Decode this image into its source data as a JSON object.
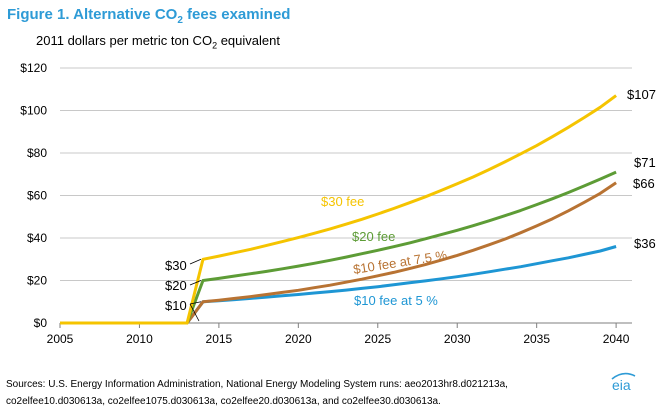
{
  "figure": {
    "title_prefix": "Figure 1. Alternative CO",
    "title_sub": "2",
    "title_suffix": " fees examined",
    "subtitle_prefix": "2011 dollars per metric ton CO",
    "subtitle_sub": "2",
    "subtitle_suffix": " equivalent"
  },
  "source": {
    "line1": "Sources: U.S. Energy Information Administration, National Energy Modeling System runs: aeo2013hr8.d021213a,",
    "line2": "co2elfee10.d030613a,  co2elfee1075.d030613a,  co2elfee20.d030613a,  and co2elfee30.d030613a."
  },
  "logo": {
    "text": "eia",
    "color": "#2e9bd6"
  },
  "chart_data": {
    "type": "line",
    "title": "Figure 1. Alternative CO2 fees examined",
    "ylabel": "2011 dollars per metric ton CO2 equivalent",
    "xlim": [
      2005,
      2041
    ],
    "ylim": [
      0,
      120
    ],
    "x_ticks": [
      2005,
      2010,
      2015,
      2020,
      2025,
      2030,
      2035,
      2040
    ],
    "y_ticks": [
      0,
      20,
      40,
      60,
      80,
      100,
      120
    ],
    "y_tick_labels": [
      "$0",
      "$20",
      "$40",
      "$60",
      "$80",
      "$100",
      "$120"
    ],
    "grid": "horizontal",
    "x": [
      2005,
      2006,
      2007,
      2008,
      2009,
      2010,
      2011,
      2012,
      2013,
      2014,
      2015,
      2016,
      2017,
      2018,
      2019,
      2020,
      2021,
      2022,
      2023,
      2024,
      2025,
      2026,
      2027,
      2028,
      2029,
      2030,
      2031,
      2032,
      2033,
      2034,
      2035,
      2036,
      2037,
      2038,
      2039,
      2040
    ],
    "series": [
      {
        "name": "$30 fee",
        "color": "#f5c400",
        "values": [
          0,
          0,
          0,
          0,
          0,
          0,
          0,
          0,
          0,
          30,
          31.5,
          33.1,
          34.7,
          36.5,
          38.3,
          40.2,
          42.2,
          44.3,
          46.5,
          48.8,
          51.3,
          53.9,
          56.6,
          59.4,
          62.4,
          65.5,
          68.7,
          72.2,
          75.8,
          79.6,
          83.5,
          87.7,
          92.1,
          96.7,
          101.5,
          107
        ]
      },
      {
        "name": "$20 fee",
        "color": "#5d9c36",
        "values": [
          0,
          0,
          0,
          0,
          0,
          0,
          0,
          0,
          0,
          20,
          21,
          22.1,
          23.2,
          24.3,
          25.5,
          26.8,
          28.1,
          29.5,
          31,
          32.6,
          34.2,
          35.9,
          37.7,
          39.6,
          41.6,
          43.6,
          45.8,
          48.1,
          50.5,
          53,
          55.7,
          58.5,
          61.4,
          64.5,
          67.7,
          71
        ]
      },
      {
        "name": "$10 fee at 7.5 %",
        "color": "#b87333",
        "values": [
          0,
          0,
          0,
          0,
          0,
          0,
          0,
          0,
          0,
          10,
          10.75,
          11.6,
          12.4,
          13.4,
          14.4,
          15.4,
          16.6,
          17.8,
          19.2,
          20.6,
          22.2,
          23.8,
          25.6,
          27.5,
          29.6,
          31.8,
          34.2,
          36.8,
          39.5,
          42.5,
          45.7,
          49.1,
          52.8,
          56.8,
          61,
          66
        ]
      },
      {
        "name": "$10 fee at 5 %",
        "color": "#1e96d4",
        "values": [
          0,
          0,
          0,
          0,
          0,
          0,
          0,
          0,
          0,
          10,
          10.5,
          11,
          11.6,
          12.2,
          12.8,
          13.4,
          14.1,
          14.8,
          15.5,
          16.3,
          17.1,
          18,
          18.9,
          19.8,
          20.8,
          21.8,
          22.9,
          24.1,
          25.3,
          26.5,
          27.9,
          29.3,
          30.7,
          32.3,
          33.9,
          36
        ]
      }
    ],
    "annotations": {
      "series_labels": [
        "$30 fee",
        "$20 fee",
        "$10 fee at 7.5 %",
        "$10 fee at 5 %"
      ],
      "end_labels": [
        "$107",
        "$71",
        "$66",
        "$36"
      ],
      "start_labels": [
        "$30",
        "$20",
        "$10"
      ]
    }
  }
}
